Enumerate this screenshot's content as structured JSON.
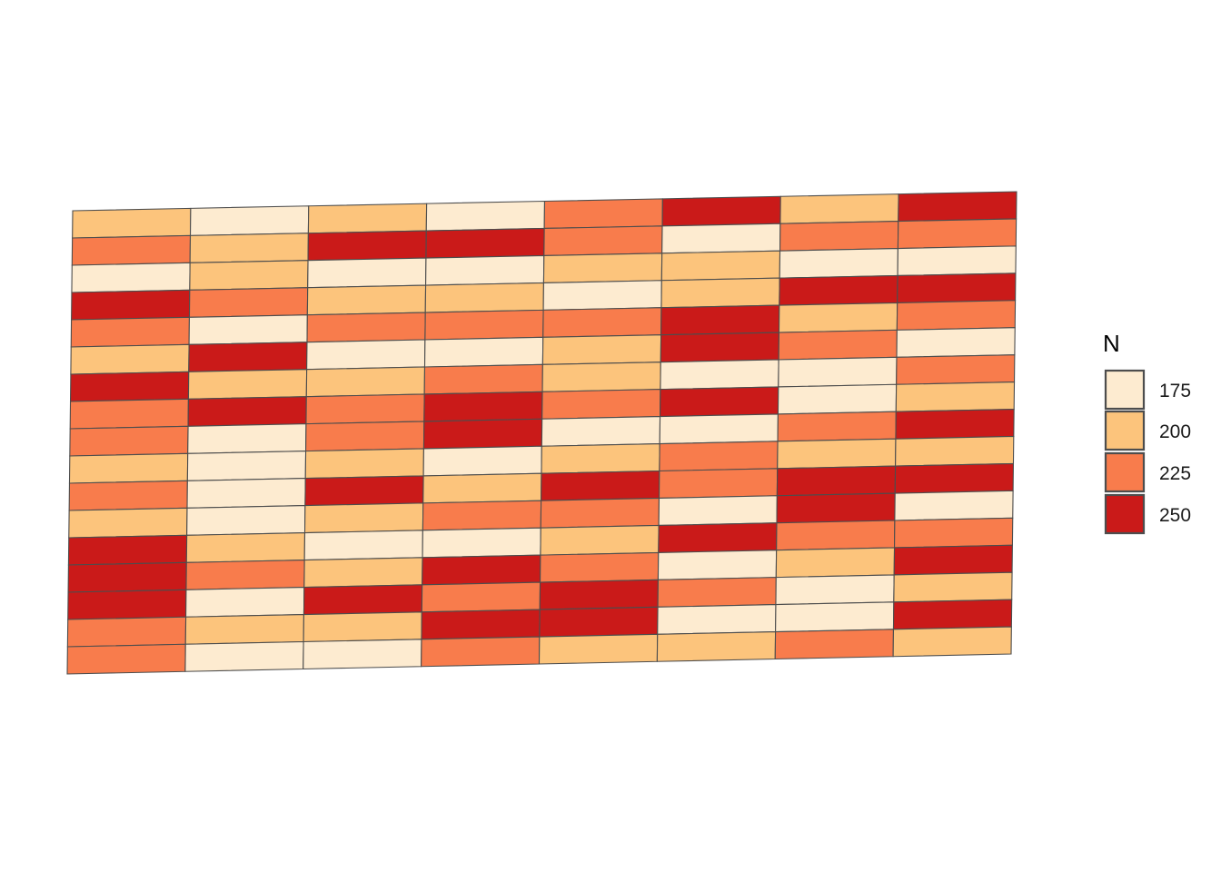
{
  "chart_data": {
    "type": "heatmap",
    "title": "",
    "xlabel": "",
    "ylabel": "",
    "grid": false,
    "legend": {
      "title": "N",
      "position": "right",
      "levels": [
        {
          "value": 175,
          "label": "175",
          "color": "#fdebd0"
        },
        {
          "value": 200,
          "label": "200",
          "color": "#fcc47c"
        },
        {
          "value": 225,
          "label": "225",
          "color": "#f87c4c"
        },
        {
          "value": 250,
          "label": "250",
          "color": "#ca1a19"
        }
      ]
    },
    "n_cols": 8,
    "n_rows": 17,
    "cells": [
      [
        200,
        175,
        200,
        175,
        225,
        250,
        200,
        250
      ],
      [
        225,
        200,
        250,
        250,
        225,
        175,
        225,
        225
      ],
      [
        175,
        200,
        175,
        175,
        200,
        200,
        175,
        175
      ],
      [
        250,
        225,
        200,
        200,
        175,
        200,
        250,
        250
      ],
      [
        225,
        175,
        225,
        225,
        225,
        250,
        200,
        225
      ],
      [
        200,
        250,
        175,
        175,
        200,
        250,
        225,
        175
      ],
      [
        250,
        200,
        200,
        225,
        200,
        175,
        175,
        225
      ],
      [
        225,
        250,
        225,
        250,
        225,
        250,
        175,
        200
      ],
      [
        225,
        175,
        225,
        250,
        175,
        175,
        225,
        250
      ],
      [
        200,
        175,
        200,
        175,
        200,
        225,
        200,
        200
      ],
      [
        225,
        175,
        250,
        200,
        250,
        225,
        250,
        250
      ],
      [
        200,
        175,
        200,
        225,
        225,
        175,
        250,
        175
      ],
      [
        250,
        200,
        175,
        175,
        200,
        250,
        225,
        225
      ],
      [
        250,
        225,
        200,
        250,
        225,
        175,
        200,
        250
      ],
      [
        250,
        175,
        250,
        225,
        250,
        225,
        175,
        200
      ],
      [
        225,
        200,
        200,
        250,
        250,
        175,
        175,
        250
      ],
      [
        225,
        175,
        175,
        225,
        200,
        200,
        225,
        200
      ]
    ]
  }
}
